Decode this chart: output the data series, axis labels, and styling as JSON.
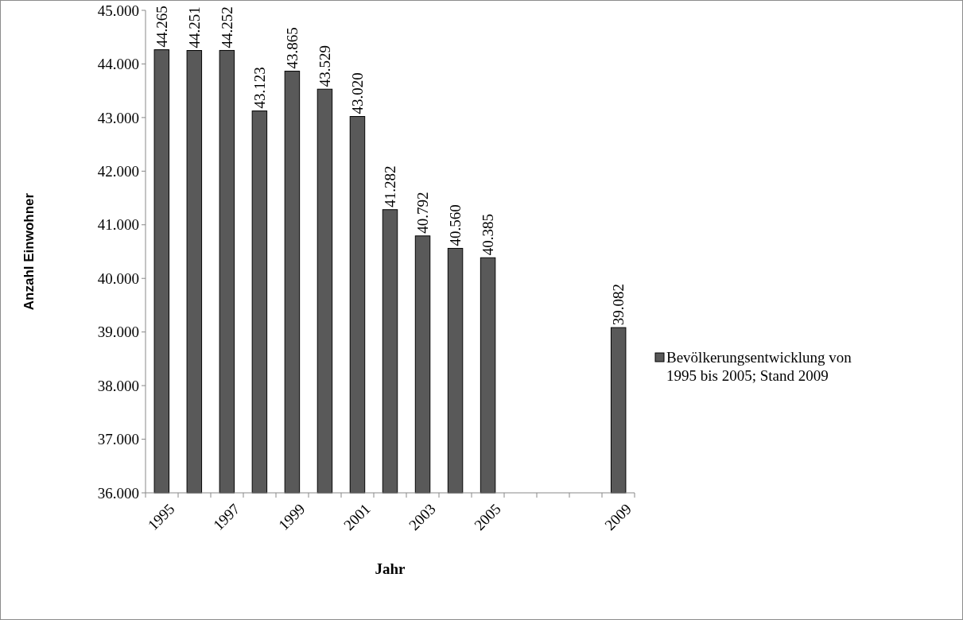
{
  "chart_data": {
    "type": "bar",
    "xlabel": "Jahr",
    "ylabel": "Anzahl Einwohner",
    "categories": [
      "1995",
      null,
      "1997",
      null,
      "1999",
      null,
      "2001",
      null,
      "2003",
      null,
      "2005",
      null,
      null,
      null,
      "2009"
    ],
    "series": [
      {
        "name": "Bevölkerungsentwicklung von 1995 bis 2005; Stand 2009",
        "color": "#595959",
        "values": [
          44265,
          44251,
          44252,
          43123,
          43865,
          43529,
          43020,
          41282,
          40792,
          40560,
          40385,
          null,
          null,
          null,
          39082
        ],
        "value_labels": [
          "44.265",
          "44.251",
          "44.252",
          "43.123",
          "43.865",
          "43.529",
          "43.020",
          "41.282",
          "40.792",
          "40.560",
          "40.385",
          null,
          null,
          null,
          "39.082"
        ]
      }
    ],
    "ylim": [
      36000,
      45000
    ],
    "yticks": [
      {
        "value": 36000,
        "label": "36.000"
      },
      {
        "value": 37000,
        "label": "37.000"
      },
      {
        "value": 38000,
        "label": "38.000"
      },
      {
        "value": 39000,
        "label": "39.000"
      },
      {
        "value": 40000,
        "label": "40.000"
      },
      {
        "value": 41000,
        "label": "41.000"
      },
      {
        "value": 42000,
        "label": "42.000"
      },
      {
        "value": 43000,
        "label": "43.000"
      },
      {
        "value": 44000,
        "label": "44.000"
      },
      {
        "value": 45000,
        "label": "45.000"
      }
    ],
    "legend": "right"
  }
}
